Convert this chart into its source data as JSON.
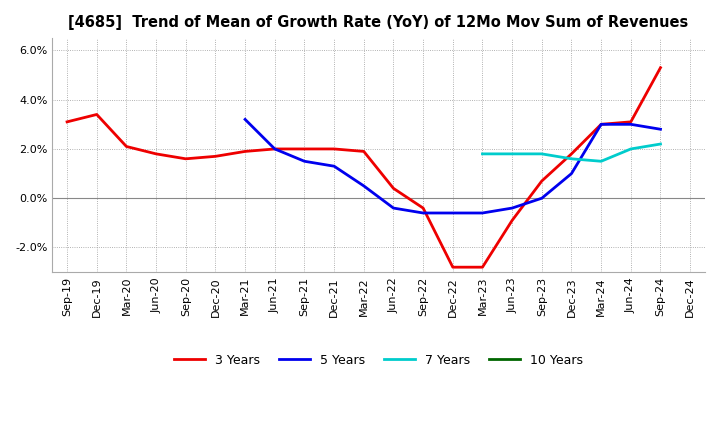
{
  "title": "[4685]  Trend of Mean of Growth Rate (YoY) of 12Mo Mov Sum of Revenues",
  "ylim": [
    -0.03,
    0.065
  ],
  "yticks": [
    -0.02,
    0.0,
    0.02,
    0.04,
    0.06
  ],
  "background_color": "#ffffff",
  "grid_color": "#aaaaaa",
  "xtick_labels": [
    "Sep-19",
    "Dec-19",
    "Mar-20",
    "Jun-20",
    "Sep-20",
    "Dec-20",
    "Mar-21",
    "Jun-21",
    "Sep-21",
    "Dec-21",
    "Mar-22",
    "Jun-22",
    "Sep-22",
    "Dec-22",
    "Mar-23",
    "Jun-23",
    "Sep-23",
    "Dec-23",
    "Mar-24",
    "Jun-24",
    "Sep-24",
    "Dec-24"
  ],
  "series_3y": {
    "color": "#ee0000",
    "x": [
      0,
      1,
      2,
      3,
      4,
      5,
      6,
      7,
      8,
      9,
      10,
      11,
      12,
      13,
      14,
      15,
      16,
      17,
      18,
      19,
      20
    ],
    "y": [
      0.031,
      0.034,
      0.021,
      0.018,
      0.016,
      0.017,
      0.019,
      0.02,
      0.02,
      0.02,
      0.019,
      0.004,
      -0.004,
      -0.028,
      -0.028,
      -0.009,
      0.007,
      0.018,
      0.03,
      0.031,
      0.053
    ]
  },
  "series_5y": {
    "color": "#0000ee",
    "x": [
      6,
      7,
      8,
      9,
      10,
      11,
      12,
      13,
      14,
      15,
      16,
      17,
      18,
      19,
      20
    ],
    "y": [
      0.032,
      0.02,
      0.015,
      0.013,
      0.005,
      -0.004,
      -0.006,
      -0.006,
      -0.006,
      -0.004,
      0.0,
      0.01,
      0.03,
      0.03,
      0.028
    ]
  },
  "series_7y": {
    "color": "#00cccc",
    "x": [
      14,
      15,
      16,
      17,
      18,
      19,
      20
    ],
    "y": [
      0.018,
      0.018,
      0.018,
      0.016,
      0.015,
      0.02,
      0.022
    ]
  },
  "series_10y": {
    "color": "#006600",
    "x": [],
    "y": []
  },
  "legend_entries": [
    {
      "label": "3 Years",
      "color": "#ee0000"
    },
    {
      "label": "5 Years",
      "color": "#0000ee"
    },
    {
      "label": "7 Years",
      "color": "#00cccc"
    },
    {
      "label": "10 Years",
      "color": "#006600"
    }
  ]
}
